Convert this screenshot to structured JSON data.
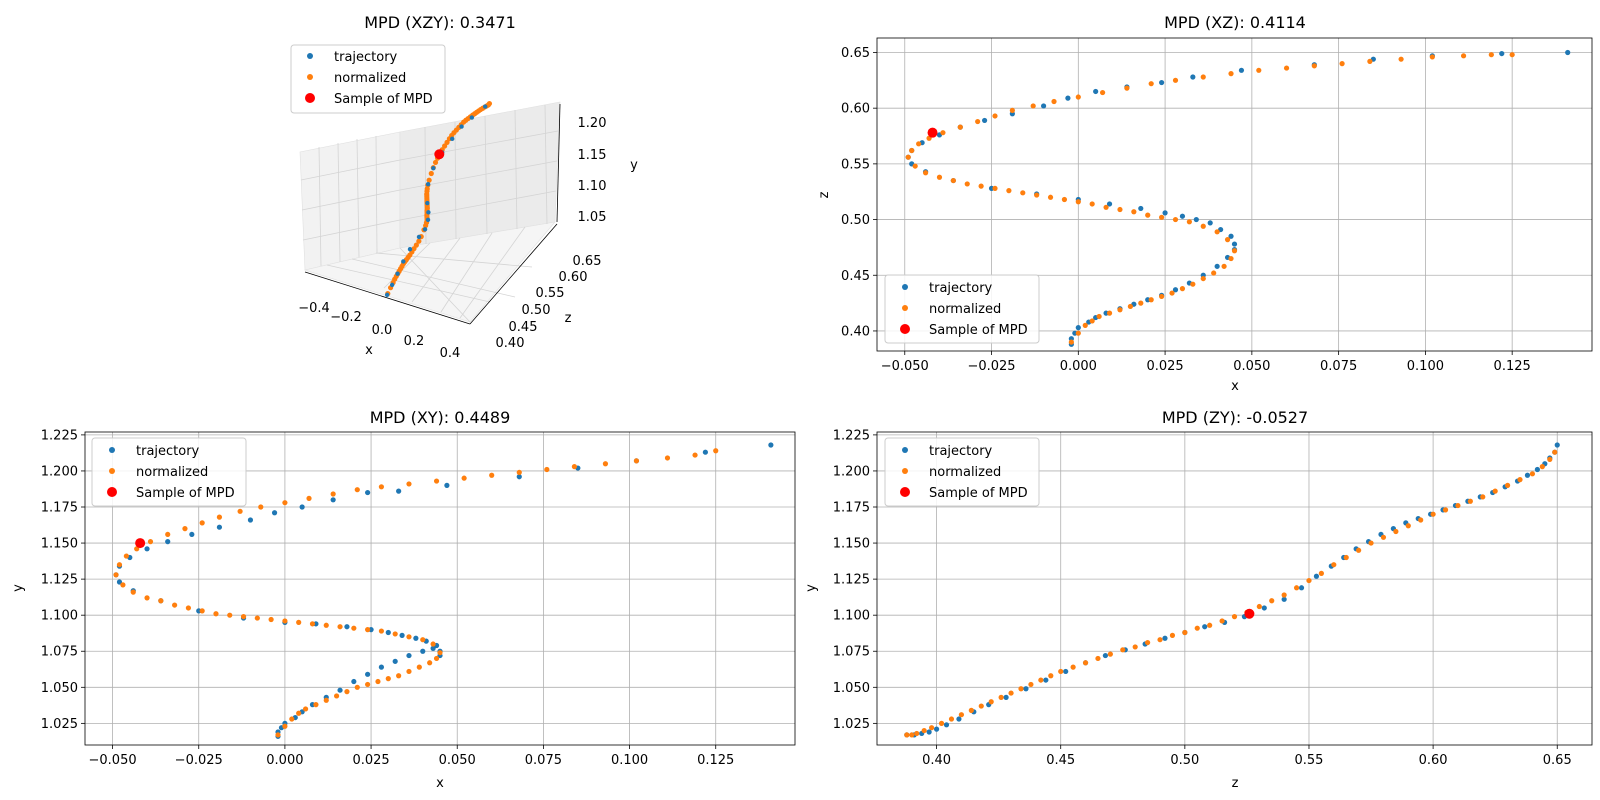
{
  "legend": {
    "trajectory": "trajectory",
    "normalized": "normalized",
    "sample": "Sample of MPD"
  },
  "colors": {
    "trajectory": "#1f77b4",
    "normalized": "#ff7f0e",
    "sample": "#ff0000",
    "grid": "#b0b0b0"
  },
  "chart_data": [
    {
      "id": "xzy",
      "type": "scatter",
      "projection": "3d",
      "title": "MPD (XZY): 0.3471",
      "xlabel": "x",
      "ylabel": "z",
      "zlabel": "y",
      "xlim": [
        -0.5,
        0.5
      ],
      "ylim": [
        0.38,
        0.67
      ],
      "zlim": [
        1.01,
        1.23
      ],
      "xticks": [
        "−0.4",
        "−0.2",
        "0.0",
        "0.2",
        "0.4"
      ],
      "yticks": [
        "0.40",
        "0.45",
        "0.50",
        "0.55",
        "0.60",
        "0.65"
      ],
      "zticks": [
        "1.05",
        "1.10",
        "1.15",
        "1.20"
      ],
      "legend_position": "upper-left",
      "sample": {
        "x": -0.042,
        "z": 0.578,
        "y": 1.15
      }
    },
    {
      "id": "xz",
      "type": "scatter",
      "title": "MPD (XZ): 0.4114",
      "xlabel": "x",
      "ylabel": "z",
      "xlim": [
        -0.058,
        0.148
      ],
      "ylim": [
        0.382,
        0.663
      ],
      "xticks": [
        -0.05,
        -0.025,
        0.0,
        0.025,
        0.05,
        0.075,
        0.1,
        0.125
      ],
      "xtick_labels": [
        "−0.050",
        "−0.025",
        "0.000",
        "0.025",
        "0.050",
        "0.075",
        "0.100",
        "0.125"
      ],
      "yticks": [
        0.4,
        0.45,
        0.5,
        0.55,
        0.6,
        0.65
      ],
      "ytick_labels": [
        "0.40",
        "0.45",
        "0.50",
        "0.55",
        "0.60",
        "0.65"
      ],
      "legend_position": "lower-left",
      "trajectory": {
        "x": [
          -0.002,
          -0.002,
          -0.001,
          0.0,
          0.003,
          0.005,
          0.008,
          0.012,
          0.016,
          0.02,
          0.024,
          0.028,
          0.032,
          0.036,
          0.04,
          0.043,
          0.045,
          0.045,
          0.044,
          0.041,
          0.038,
          0.034,
          0.03,
          0.025,
          0.018,
          0.009,
          0.0,
          -0.012,
          -0.025,
          -0.036,
          -0.044,
          -0.048,
          -0.049,
          -0.048,
          -0.045,
          -0.04,
          -0.034,
          -0.027,
          -0.019,
          -0.01,
          -0.003,
          0.005,
          0.014,
          0.024,
          0.033,
          0.047,
          0.068,
          0.085,
          0.102,
          0.122,
          0.141
        ],
        "y": [
          0.388,
          0.393,
          0.398,
          0.403,
          0.408,
          0.412,
          0.416,
          0.42,
          0.424,
          0.428,
          0.432,
          0.437,
          0.443,
          0.45,
          0.458,
          0.466,
          0.473,
          0.478,
          0.485,
          0.491,
          0.497,
          0.5,
          0.503,
          0.506,
          0.51,
          0.514,
          0.518,
          0.523,
          0.528,
          0.535,
          0.543,
          0.55,
          0.556,
          0.562,
          0.569,
          0.576,
          0.583,
          0.589,
          0.595,
          0.602,
          0.609,
          0.615,
          0.619,
          0.623,
          0.628,
          0.634,
          0.639,
          0.644,
          0.647,
          0.649,
          0.65
        ]
      },
      "normalized": {
        "x": [
          -0.002,
          0.0,
          0.002,
          0.004,
          0.006,
          0.009,
          0.012,
          0.015,
          0.018,
          0.021,
          0.024,
          0.027,
          0.03,
          0.033,
          0.036,
          0.039,
          0.042,
          0.044,
          0.045,
          0.043,
          0.04,
          0.036,
          0.032,
          0.028,
          0.024,
          0.02,
          0.016,
          0.012,
          0.008,
          0.004,
          0.0,
          -0.004,
          -0.008,
          -0.012,
          -0.016,
          -0.02,
          -0.024,
          -0.028,
          -0.032,
          -0.036,
          -0.04,
          -0.044,
          -0.047,
          -0.049,
          -0.048,
          -0.046,
          -0.043,
          -0.039,
          -0.034,
          -0.029,
          -0.024,
          -0.019,
          -0.013,
          -0.007,
          0.0,
          0.007,
          0.014,
          0.021,
          0.028,
          0.036,
          0.044,
          0.052,
          0.06,
          0.068,
          0.076,
          0.084,
          0.093,
          0.102,
          0.111,
          0.119,
          0.125
        ],
        "y": [
          0.39,
          0.398,
          0.405,
          0.409,
          0.413,
          0.416,
          0.419,
          0.422,
          0.425,
          0.428,
          0.431,
          0.434,
          0.438,
          0.442,
          0.447,
          0.452,
          0.458,
          0.465,
          0.472,
          0.482,
          0.489,
          0.494,
          0.498,
          0.5,
          0.502,
          0.504,
          0.507,
          0.509,
          0.511,
          0.514,
          0.516,
          0.518,
          0.52,
          0.522,
          0.524,
          0.526,
          0.528,
          0.53,
          0.532,
          0.535,
          0.538,
          0.542,
          0.548,
          0.556,
          0.562,
          0.568,
          0.573,
          0.578,
          0.583,
          0.588,
          0.593,
          0.598,
          0.602,
          0.606,
          0.61,
          0.614,
          0.618,
          0.622,
          0.625,
          0.628,
          0.631,
          0.634,
          0.636,
          0.638,
          0.64,
          0.642,
          0.644,
          0.646,
          0.647,
          0.648,
          0.648
        ]
      },
      "sample": {
        "x": -0.042,
        "y": 0.578
      }
    },
    {
      "id": "xy",
      "type": "scatter",
      "title": "MPD (XY): 0.4489",
      "xlabel": "x",
      "ylabel": "y",
      "xlim": [
        -0.058,
        0.148
      ],
      "ylim": [
        1.01,
        1.227
      ],
      "xticks": [
        -0.05,
        -0.025,
        0.0,
        0.025,
        0.05,
        0.075,
        0.1,
        0.125
      ],
      "xtick_labels": [
        "−0.050",
        "−0.025",
        "0.000",
        "0.025",
        "0.050",
        "0.075",
        "0.100",
        "0.125"
      ],
      "yticks": [
        1.025,
        1.05,
        1.075,
        1.1,
        1.125,
        1.15,
        1.175,
        1.2,
        1.225
      ],
      "ytick_labels": [
        "1.025",
        "1.050",
        "1.075",
        "1.100",
        "1.125",
        "1.150",
        "1.175",
        "1.200",
        "1.225"
      ],
      "legend_position": "upper-left",
      "trajectory": {
        "x": [
          -0.002,
          -0.002,
          -0.001,
          0.0,
          0.003,
          0.005,
          0.008,
          0.012,
          0.016,
          0.02,
          0.024,
          0.028,
          0.032,
          0.036,
          0.04,
          0.043,
          0.045,
          0.045,
          0.044,
          0.041,
          0.038,
          0.034,
          0.03,
          0.025,
          0.018,
          0.009,
          0.0,
          -0.012,
          -0.025,
          -0.036,
          -0.044,
          -0.048,
          -0.049,
          -0.048,
          -0.045,
          -0.04,
          -0.034,
          -0.027,
          -0.019,
          -0.01,
          -0.003,
          0.005,
          0.014,
          0.024,
          0.033,
          0.047,
          0.068,
          0.085,
          0.102,
          0.122,
          0.141
        ],
        "y": [
          1.016,
          1.019,
          1.022,
          1.025,
          1.029,
          1.033,
          1.038,
          1.043,
          1.048,
          1.054,
          1.059,
          1.064,
          1.068,
          1.072,
          1.075,
          1.077,
          1.075,
          1.072,
          1.079,
          1.082,
          1.084,
          1.086,
          1.088,
          1.09,
          1.092,
          1.094,
          1.095,
          1.098,
          1.103,
          1.11,
          1.117,
          1.123,
          1.128,
          1.134,
          1.14,
          1.146,
          1.151,
          1.156,
          1.161,
          1.166,
          1.171,
          1.175,
          1.18,
          1.185,
          1.186,
          1.19,
          1.196,
          1.202,
          1.207,
          1.213,
          1.218
        ]
      },
      "normalized": {
        "x": [
          -0.002,
          0.0,
          0.002,
          0.004,
          0.006,
          0.009,
          0.012,
          0.015,
          0.018,
          0.021,
          0.024,
          0.027,
          0.03,
          0.033,
          0.036,
          0.039,
          0.042,
          0.044,
          0.045,
          0.043,
          0.04,
          0.036,
          0.032,
          0.028,
          0.024,
          0.02,
          0.016,
          0.012,
          0.008,
          0.004,
          0.0,
          -0.004,
          -0.008,
          -0.012,
          -0.016,
          -0.02,
          -0.024,
          -0.028,
          -0.032,
          -0.036,
          -0.04,
          -0.044,
          -0.047,
          -0.049,
          -0.048,
          -0.046,
          -0.043,
          -0.039,
          -0.034,
          -0.029,
          -0.024,
          -0.019,
          -0.013,
          -0.007,
          0.0,
          0.007,
          0.014,
          0.021,
          0.028,
          0.036,
          0.044,
          0.052,
          0.06,
          0.068,
          0.076,
          0.084,
          0.093,
          0.102,
          0.111,
          0.119,
          0.125
        ],
        "y": [
          1.017,
          1.023,
          1.028,
          1.032,
          1.035,
          1.038,
          1.041,
          1.044,
          1.047,
          1.05,
          1.052,
          1.054,
          1.056,
          1.058,
          1.061,
          1.064,
          1.067,
          1.07,
          1.074,
          1.08,
          1.083,
          1.085,
          1.087,
          1.089,
          1.09,
          1.091,
          1.092,
          1.093,
          1.094,
          1.095,
          1.096,
          1.097,
          1.098,
          1.099,
          1.1,
          1.101,
          1.103,
          1.105,
          1.107,
          1.11,
          1.112,
          1.116,
          1.121,
          1.128,
          1.135,
          1.141,
          1.146,
          1.151,
          1.156,
          1.16,
          1.164,
          1.168,
          1.172,
          1.175,
          1.178,
          1.181,
          1.184,
          1.187,
          1.189,
          1.191,
          1.193,
          1.195,
          1.197,
          1.199,
          1.201,
          1.203,
          1.205,
          1.207,
          1.209,
          1.211,
          1.214
        ]
      },
      "sample": {
        "x": -0.042,
        "y": 1.15
      }
    },
    {
      "id": "zy",
      "type": "scatter",
      "title": "MPD (ZY): -0.0527",
      "xlabel": "z",
      "ylabel": "y",
      "xlim": [
        0.376,
        0.664
      ],
      "ylim": [
        1.01,
        1.227
      ],
      "xticks": [
        0.4,
        0.45,
        0.5,
        0.55,
        0.6,
        0.65
      ],
      "xtick_labels": [
        "0.40",
        "0.45",
        "0.50",
        "0.55",
        "0.60",
        "0.65"
      ],
      "yticks": [
        1.025,
        1.05,
        1.075,
        1.1,
        1.125,
        1.15,
        1.175,
        1.2,
        1.225
      ],
      "ytick_labels": [
        "1.025",
        "1.050",
        "1.075",
        "1.100",
        "1.125",
        "1.150",
        "1.175",
        "1.200",
        "1.225"
      ],
      "legend_position": "upper-left",
      "trajectory": {
        "x": [
          0.388,
          0.391,
          0.394,
          0.397,
          0.4,
          0.404,
          0.409,
          0.415,
          0.421,
          0.428,
          0.436,
          0.444,
          0.452,
          0.46,
          0.468,
          0.476,
          0.484,
          0.492,
          0.5,
          0.508,
          0.516,
          0.524,
          0.532,
          0.54,
          0.547,
          0.553,
          0.559,
          0.564,
          0.569,
          0.574,
          0.579,
          0.584,
          0.589,
          0.594,
          0.599,
          0.604,
          0.609,
          0.614,
          0.619,
          0.624,
          0.629,
          0.634,
          0.638,
          0.642,
          0.645,
          0.647,
          0.649,
          0.65
        ],
        "y": [
          1.017,
          1.017,
          1.018,
          1.019,
          1.021,
          1.024,
          1.028,
          1.033,
          1.038,
          1.043,
          1.049,
          1.055,
          1.061,
          1.067,
          1.072,
          1.076,
          1.08,
          1.084,
          1.088,
          1.092,
          1.095,
          1.099,
          1.105,
          1.111,
          1.119,
          1.127,
          1.134,
          1.14,
          1.146,
          1.151,
          1.156,
          1.16,
          1.164,
          1.167,
          1.17,
          1.173,
          1.176,
          1.179,
          1.182,
          1.185,
          1.189,
          1.193,
          1.197,
          1.201,
          1.205,
          1.209,
          1.213,
          1.218
        ]
      },
      "normalized": {
        "x": [
          0.388,
          0.39,
          0.392,
          0.395,
          0.398,
          0.402,
          0.406,
          0.41,
          0.414,
          0.418,
          0.422,
          0.426,
          0.43,
          0.434,
          0.438,
          0.442,
          0.446,
          0.45,
          0.455,
          0.46,
          0.465,
          0.47,
          0.475,
          0.48,
          0.485,
          0.49,
          0.495,
          0.5,
          0.505,
          0.51,
          0.515,
          0.52,
          0.525,
          0.53,
          0.535,
          0.54,
          0.545,
          0.55,
          0.555,
          0.56,
          0.565,
          0.57,
          0.575,
          0.58,
          0.585,
          0.59,
          0.595,
          0.6,
          0.605,
          0.61,
          0.615,
          0.62,
          0.625,
          0.63,
          0.635,
          0.64,
          0.644,
          0.647,
          0.649
        ],
        "y": [
          1.017,
          1.017,
          1.018,
          1.02,
          1.022,
          1.025,
          1.028,
          1.031,
          1.034,
          1.037,
          1.04,
          1.043,
          1.046,
          1.049,
          1.052,
          1.055,
          1.058,
          1.061,
          1.064,
          1.067,
          1.07,
          1.073,
          1.076,
          1.078,
          1.081,
          1.083,
          1.086,
          1.088,
          1.091,
          1.093,
          1.096,
          1.099,
          1.102,
          1.106,
          1.11,
          1.114,
          1.119,
          1.124,
          1.129,
          1.135,
          1.14,
          1.145,
          1.15,
          1.154,
          1.158,
          1.162,
          1.166,
          1.17,
          1.173,
          1.176,
          1.179,
          1.182,
          1.186,
          1.19,
          1.194,
          1.198,
          1.203,
          1.208,
          1.213
        ]
      },
      "sample": {
        "x": 0.526,
        "y": 1.101
      }
    }
  ]
}
